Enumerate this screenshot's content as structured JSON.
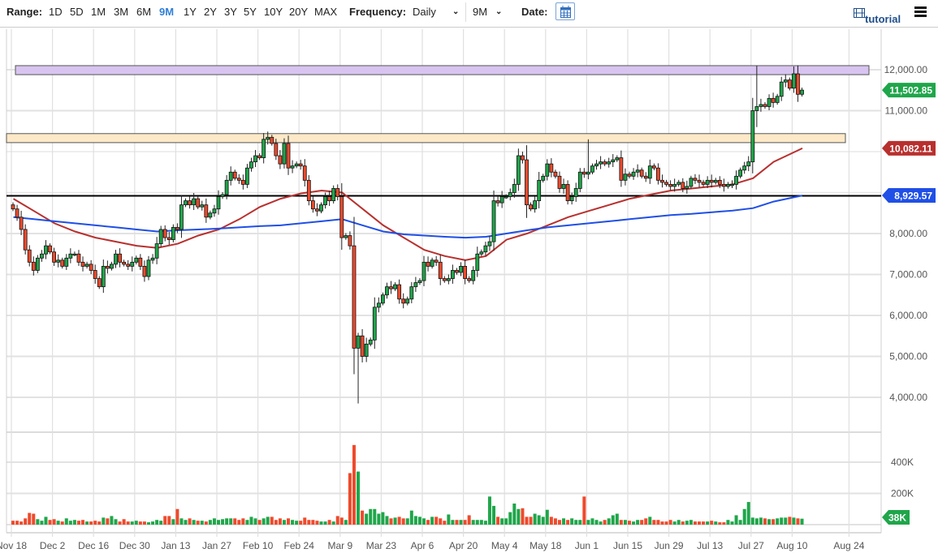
{
  "toolbar": {
    "range_label": "Range:",
    "ranges": [
      "1D",
      "5D",
      "1M",
      "3M",
      "6M",
      "9M",
      "1Y",
      "2Y",
      "3Y",
      "5Y",
      "10Y",
      "20Y",
      "MAX"
    ],
    "active_range": "9M",
    "frequency_label": "Frequency:",
    "frequency_value": "Daily",
    "period_value": "9M",
    "date_label": "Date:",
    "calendar_icon": "calendar-icon",
    "tutorial_label": "tutorial",
    "tutorial_icon": "film-icon",
    "menu_icon": "hamburger-menu-icon"
  },
  "colors": {
    "up": "#1fa64a",
    "down": "#ee4a2c",
    "ma_red": "#b8302e",
    "ma_blue": "#1f4fe6",
    "zone_purple": "#d8c4f0",
    "zone_beige": "#fde9c8",
    "active_range": "#2f7fd6"
  },
  "chart_data": {
    "type": "candlestick",
    "price_axis": {
      "ticks": [
        4000,
        5000,
        6000,
        7000,
        8000,
        11000,
        12000
      ],
      "tick_labels": [
        "4,000.00",
        "5,000.00",
        "6,000.00",
        "7,000.00",
        "8,000.00",
        "11,000.00",
        "12,000.00"
      ],
      "range": [
        3800,
        12300
      ],
      "grid": true
    },
    "volume_axis": {
      "ticks": [
        200,
        400
      ],
      "tick_labels": [
        "200K",
        "400K"
      ],
      "range": [
        0,
        540
      ],
      "unit": "K"
    },
    "x_tick_labels": [
      "Nov 18",
      "Dec 2",
      "Dec 16",
      "Dec 30",
      "Jan 13",
      "Jan 27",
      "Feb 10",
      "Feb 24",
      "Mar 9",
      "Mar 23",
      "Apr 6",
      "Apr 20",
      "May 4",
      "May 18",
      "Jun 1",
      "Jun 15",
      "Jun 29",
      "Jul 13",
      "Jul 27",
      "Aug 10",
      "Aug 24"
    ],
    "weeks": [
      {
        "week": "Nov 18",
        "close": [
          8600,
          8400,
          8100,
          7600,
          7300
        ],
        "volume": [
          25,
          25,
          20,
          40,
          75
        ]
      },
      {
        "week": "Nov 25",
        "close": [
          7100,
          7400,
          7500,
          7700,
          7550
        ],
        "volume": [
          70,
          35,
          25,
          50,
          30
        ]
      },
      {
        "week": "Dec 2",
        "close": [
          7300,
          7350,
          7200,
          7400,
          7500
        ],
        "volume": [
          35,
          25,
          20,
          40,
          25
        ]
      },
      {
        "week": "Dec 9",
        "close": [
          7500,
          7300,
          7200,
          7250,
          7100
        ],
        "volume": [
          30,
          25,
          30,
          20,
          20
        ]
      },
      {
        "week": "Dec 16",
        "close": [
          6900,
          6700,
          7200,
          7150,
          7250
        ],
        "volume": [
          25,
          20,
          45,
          40,
          55
        ]
      },
      {
        "week": "Dec 23",
        "close": [
          7500,
          7300,
          7250,
          7200,
          7300
        ],
        "volume": [
          35,
          20,
          35,
          20,
          20
        ]
      },
      {
        "week": "Dec 30",
        "close": [
          7400,
          7200,
          6950,
          7350,
          7400
        ],
        "volume": [
          25,
          20,
          20,
          15,
          20
        ]
      },
      {
        "week": "Jan 6",
        "close": [
          7750,
          8100,
          7900,
          7850,
          8150
        ],
        "volume": [
          30,
          25,
          55,
          55,
          35
        ]
      },
      {
        "week": "Jan 13",
        "close": [
          8100,
          8700,
          8800,
          8700,
          8850
        ],
        "volume": [
          100,
          40,
          30,
          40,
          30
        ]
      },
      {
        "week": "Jan 20",
        "close": [
          8650,
          8700,
          8400,
          8500,
          8600
        ],
        "volume": [
          25,
          25,
          20,
          30,
          40
        ]
      },
      {
        "week": "Jan 27",
        "close": [
          8900,
          8950,
          9300,
          9500,
          9350
        ],
        "volume": [
          30,
          35,
          40,
          40,
          40
        ]
      },
      {
        "week": "Feb 3",
        "close": [
          9300,
          9200,
          9600,
          9750,
          9900
        ],
        "volume": [
          30,
          40,
          30,
          50,
          40
        ]
      },
      {
        "week": "Feb 10",
        "close": [
          9850,
          10300,
          10350,
          10200,
          9900
        ],
        "volume": [
          30,
          40,
          50,
          50,
          30
        ]
      },
      {
        "week": "Feb 17",
        "close": [
          9700,
          10200,
          9600,
          9650,
          9700
        ],
        "volume": [
          40,
          30,
          40,
          30,
          25
        ]
      },
      {
        "week": "Feb 24",
        "close": [
          9650,
          9300,
          8800,
          8600,
          8550
        ],
        "volume": [
          25,
          45,
          30,
          30,
          25
        ]
      },
      {
        "week": "Mar 2",
        "close": [
          8700,
          8900,
          8800,
          9100,
          8900
        ],
        "volume": [
          20,
          20,
          30,
          20,
          55
        ]
      },
      {
        "week": "Mar 9",
        "close": [
          7900,
          7950,
          7700,
          5200,
          5500
        ],
        "volume": [
          45,
          30,
          330,
          510,
          340
        ]
      },
      {
        "week": "Mar 16",
        "close": [
          5000,
          5300,
          5400,
          6200,
          6300
        ],
        "volume": [
          90,
          70,
          100,
          100,
          70
        ]
      },
      {
        "week": "Mar 23",
        "close": [
          6500,
          6700,
          6650,
          6750,
          6400
        ],
        "volume": [
          80,
          55,
          40,
          45,
          50
        ]
      },
      {
        "week": "Mar 30",
        "close": [
          6300,
          6400,
          6700,
          6800,
          6850
        ],
        "volume": [
          40,
          40,
          90,
          55,
          50
        ]
      },
      {
        "week": "Apr 6",
        "close": [
          7300,
          7200,
          7350,
          7300,
          6900
        ],
        "volume": [
          40,
          30,
          50,
          50,
          40
        ]
      },
      {
        "week": "Apr 13",
        "close": [
          6850,
          6900,
          7100,
          7050,
          7200
        ],
        "volume": [
          25,
          65,
          30,
          30,
          30
        ]
      },
      {
        "week": "Apr 20",
        "close": [
          6900,
          6850,
          7100,
          7500,
          7550
        ],
        "volume": [
          30,
          60,
          30,
          30,
          30
        ]
      },
      {
        "week": "Apr 27",
        "close": [
          7700,
          7800,
          8800,
          8750,
          8900
        ],
        "volume": [
          25,
          180,
          120,
          50,
          40
        ]
      },
      {
        "week": "May 4",
        "close": [
          8900,
          9000,
          9200,
          9900,
          9800
        ],
        "volume": [
          40,
          80,
          135,
          100,
          105
        ]
      },
      {
        "week": "May 11",
        "close": [
          8700,
          8600,
          8800,
          9300,
          9400
        ],
        "volume": [
          50,
          50,
          70,
          60,
          50
        ]
      },
      {
        "week": "May 18",
        "close": [
          9700,
          9500,
          9400,
          9100,
          9200
        ],
        "volume": [
          95,
          50,
          40,
          30,
          40
        ]
      },
      {
        "week": "May 25",
        "close": [
          8800,
          8900,
          9100,
          9500,
          9450
        ],
        "volume": [
          30,
          40,
          30,
          30,
          180
        ]
      },
      {
        "week": "Jun 1",
        "close": [
          9500,
          9650,
          9700,
          9750,
          9700
        ],
        "volume": [
          30,
          40,
          30,
          20,
          30
        ]
      },
      {
        "week": "Jun 8",
        "close": [
          9750,
          9800,
          9850,
          9300,
          9450
        ],
        "volume": [
          40,
          60,
          70,
          30,
          30
        ]
      },
      {
        "week": "Jun 15",
        "close": [
          9400,
          9500,
          9550,
          9400,
          9350
        ],
        "volume": [
          25,
          20,
          30,
          30,
          40
        ]
      },
      {
        "week": "Jun 22",
        "close": [
          9650,
          9600,
          9300,
          9250,
          9200
        ],
        "volume": [
          50,
          30,
          30,
          20,
          20
        ]
      },
      {
        "week": "Jun 29",
        "close": [
          9150,
          9200,
          9250,
          9100,
          9150
        ],
        "volume": [
          30,
          20,
          30,
          20,
          25
        ]
      },
      {
        "week": "Jul 6",
        "close": [
          9350,
          9300,
          9250,
          9200,
          9300
        ],
        "volume": [
          30,
          20,
          20,
          20,
          20
        ]
      },
      {
        "week": "Jul 13",
        "close": [
          9250,
          9300,
          9200,
          9150,
          9200
        ],
        "volume": [
          25,
          20,
          15,
          15,
          30
        ]
      },
      {
        "week": "Jul 20",
        "close": [
          9200,
          9400,
          9550,
          9650,
          9750
        ],
        "volume": [
          20,
          60,
          30,
          100,
          145
        ]
      },
      {
        "week": "Jul 27",
        "close": [
          11000,
          11100,
          11150,
          11100,
          11300
        ],
        "volume": [
          45,
          40,
          45,
          40,
          35
        ]
      },
      {
        "week": "Aug 3",
        "close": [
          11200,
          11350,
          11700,
          11750,
          11550
        ],
        "volume": [
          35,
          40,
          45,
          45,
          50
        ]
      },
      {
        "week": "Aug 10",
        "close": [
          11900,
          11400,
          11502.85
        ],
        "volume": [
          45,
          40,
          38
        ]
      }
    ],
    "extremes": [
      {
        "week": "Mar 9",
        "day": 4,
        "low": 3850
      },
      {
        "week": "Jun 1",
        "day": 0,
        "high": 10300
      },
      {
        "week": "Jul 27",
        "day": 1,
        "high": 12100,
        "low": 10600
      },
      {
        "week": "Aug 10",
        "day": 0,
        "high": 12080
      }
    ],
    "moving_averages": [
      {
        "color": "#b8302e",
        "weekly": [
          8850,
          8550,
          8250,
          8050,
          7900,
          7800,
          7700,
          7650,
          7750,
          7950,
          8100,
          8350,
          8650,
          8850,
          8980,
          9050,
          9000,
          8600,
          8200,
          7900,
          7600,
          7450,
          7350,
          7450,
          7850,
          8000,
          8200,
          8400,
          8550,
          8700,
          8850,
          8950,
          9050,
          9100,
          9150,
          9200,
          9350,
          9750,
          10082.11
        ]
      },
      {
        "color": "#1f4fe6",
        "weekly": [
          8400,
          8350,
          8300,
          8250,
          8200,
          8150,
          8100,
          8050,
          8080,
          8100,
          8120,
          8150,
          8180,
          8200,
          8250,
          8300,
          8350,
          8200,
          8050,
          7980,
          7950,
          7920,
          7900,
          7920,
          8000,
          8080,
          8150,
          8200,
          8250,
          8300,
          8350,
          8400,
          8450,
          8480,
          8520,
          8560,
          8620,
          8780,
          8929.57
        ]
      }
    ],
    "zones": [
      {
        "from": 11880,
        "to": 12100,
        "color": "#d8c4f0"
      },
      {
        "from": 10220,
        "to": 10440,
        "color": "#fde9c8"
      }
    ],
    "horizontal_line": 8920,
    "badges": {
      "last_price": "11,502.85",
      "ma_red": "10,082.11",
      "ma_blue": "8,929.57",
      "last_volume": "38K"
    }
  }
}
